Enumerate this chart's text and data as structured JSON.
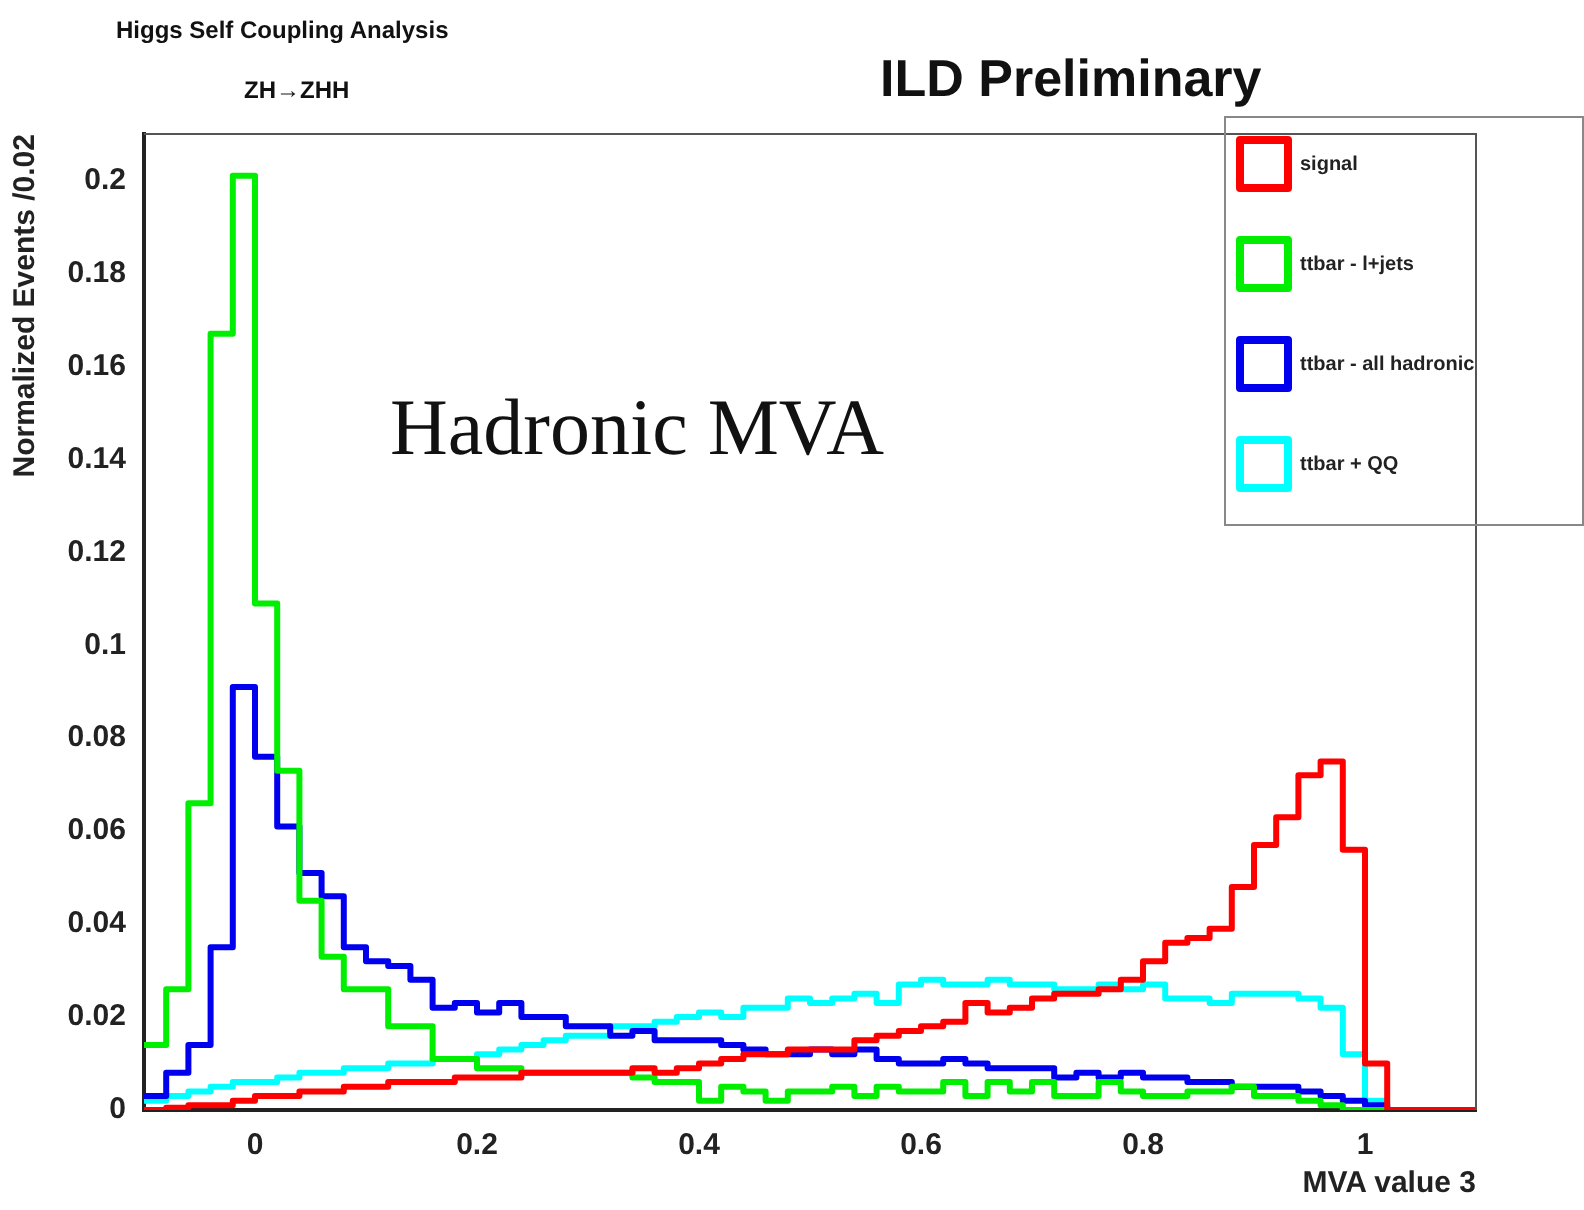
{
  "chart_data": {
    "type": "histogram",
    "title": "ILD Preliminary",
    "annotations": [
      "Higgs Self Coupling Analysis",
      "ZH→ZHH",
      "Hadronic MVA"
    ],
    "xlabel": "MVA value 3",
    "ylabel": "Normalized Events /0.02",
    "bins": [
      -0.1,
      -0.08,
      -0.06,
      -0.04,
      -0.02,
      0,
      0.02,
      0.04,
      0.06,
      0.08,
      0.1,
      0.12,
      0.14,
      0.16,
      0.18,
      0.2,
      0.22,
      0.24,
      0.26,
      0.28,
      0.3,
      0.32,
      0.34,
      0.36,
      0.38,
      0.4,
      0.42,
      0.44,
      0.46,
      0.48,
      0.5,
      0.52,
      0.54,
      0.56,
      0.58,
      0.6,
      0.62,
      0.64,
      0.66,
      0.68,
      0.7,
      0.72,
      0.74,
      0.76,
      0.78,
      0.8,
      0.82,
      0.84,
      0.86,
      0.88,
      0.9,
      0.92,
      0.94,
      0.96,
      0.98,
      1,
      1.02,
      1.04,
      1.06,
      1.08,
      1.1
    ],
    "series": [
      {
        "name": "signal",
        "color": "#ff0000",
        "values": [
          0,
          0.0005,
          0.001,
          0.001,
          0.002,
          0.003,
          0.003,
          0.004,
          0.004,
          0.005,
          0.005,
          0.006,
          0.006,
          0.006,
          0.007,
          0.007,
          0.007,
          0.008,
          0.008,
          0.008,
          0.008,
          0.008,
          0.009,
          0.008,
          0.009,
          0.01,
          0.011,
          0.012,
          0.012,
          0.013,
          0.013,
          0.013,
          0.015,
          0.016,
          0.017,
          0.018,
          0.019,
          0.023,
          0.021,
          0.022,
          0.024,
          0.025,
          0.025,
          0.026,
          0.028,
          0.032,
          0.036,
          0.037,
          0.039,
          0.048,
          0.057,
          0.063,
          0.072,
          0.075,
          0.056,
          0.01,
          0,
          0,
          0,
          0
        ]
      },
      {
        "name": "ttbar - l+jets",
        "color": "#00ee00",
        "values": [
          0.014,
          0.026,
          0.066,
          0.167,
          0.201,
          0.109,
          0.073,
          0.045,
          0.033,
          0.026,
          0.026,
          0.018,
          0.018,
          0.011,
          0.011,
          0.009,
          0.009,
          0.008,
          0.008,
          0.008,
          0.008,
          0.008,
          0.007,
          0.006,
          0.006,
          0.002,
          0.005,
          0.004,
          0.002,
          0.004,
          0.004,
          0.005,
          0.003,
          0.005,
          0.004,
          0.004,
          0.006,
          0.003,
          0.006,
          0.004,
          0.006,
          0.003,
          0.003,
          0.006,
          0.004,
          0.003,
          0.003,
          0.004,
          0.004,
          0.005,
          0.003,
          0.003,
          0.002,
          0.001,
          0,
          0,
          0,
          0,
          0,
          0
        ]
      },
      {
        "name": "ttbar - all hadronic",
        "color": "#0000ee",
        "values": [
          0.003,
          0.008,
          0.014,
          0.035,
          0.091,
          0.076,
          0.061,
          0.051,
          0.046,
          0.035,
          0.032,
          0.031,
          0.028,
          0.022,
          0.023,
          0.021,
          0.023,
          0.02,
          0.02,
          0.018,
          0.018,
          0.016,
          0.017,
          0.015,
          0.015,
          0.015,
          0.014,
          0.013,
          0.012,
          0.012,
          0.013,
          0.012,
          0.013,
          0.011,
          0.01,
          0.01,
          0.011,
          0.01,
          0.009,
          0.009,
          0.009,
          0.007,
          0.008,
          0.007,
          0.008,
          0.007,
          0.007,
          0.006,
          0.006,
          0.005,
          0.005,
          0.005,
          0.004,
          0.003,
          0.002,
          0.001,
          0,
          0,
          0,
          0
        ]
      },
      {
        "name": "ttbar + QQ",
        "color": "#00ffff",
        "values": [
          0.002,
          0.003,
          0.004,
          0.005,
          0.006,
          0.006,
          0.007,
          0.008,
          0.008,
          0.009,
          0.009,
          0.01,
          0.01,
          0.011,
          0.011,
          0.012,
          0.013,
          0.014,
          0.015,
          0.016,
          0.016,
          0.018,
          0.018,
          0.019,
          0.02,
          0.021,
          0.02,
          0.022,
          0.022,
          0.024,
          0.023,
          0.024,
          0.025,
          0.023,
          0.027,
          0.028,
          0.027,
          0.027,
          0.028,
          0.027,
          0.027,
          0.026,
          0.026,
          0.027,
          0.026,
          0.027,
          0.024,
          0.024,
          0.023,
          0.025,
          0.025,
          0.025,
          0.024,
          0.022,
          0.012,
          0.002,
          0,
          0,
          0,
          0
        ]
      }
    ],
    "xlim": [
      -0.1,
      1.1
    ],
    "xticks": [
      0,
      0.2,
      0.4,
      0.6,
      0.8,
      1
    ],
    "ylim": [
      0,
      0.21
    ],
    "yticks": [
      0,
      0.02,
      0.04,
      0.06,
      0.08,
      0.1,
      0.12,
      0.14,
      0.16,
      0.18,
      0.2
    ],
    "legend": "top right",
    "grid": false
  }
}
